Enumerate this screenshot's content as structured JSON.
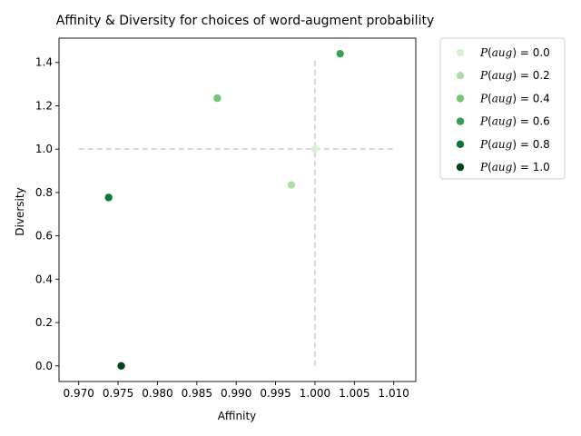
{
  "chart_data": {
    "type": "scatter",
    "title": "Affinity & Diversity for choices of word-augment probability",
    "xlabel": "Affinity",
    "ylabel": "Diversity",
    "xlim": [
      0.9675,
      1.0128
    ],
    "ylim": [
      -0.072,
      1.512
    ],
    "xticks": [
      "0.970",
      "0.975",
      "0.980",
      "0.985",
      "0.990",
      "0.995",
      "1.000",
      "1.005",
      "1.010"
    ],
    "yticks": [
      "0.0",
      "0.2",
      "0.4",
      "0.6",
      "0.8",
      "1.0",
      "1.2",
      "1.4"
    ],
    "xtick_values": [
      0.97,
      0.975,
      0.98,
      0.985,
      0.99,
      0.995,
      1.0,
      1.005,
      1.01
    ],
    "ytick_values": [
      0.0,
      0.2,
      0.4,
      0.6,
      0.8,
      1.0,
      1.2,
      1.4
    ],
    "reference_lines": [
      {
        "orientation": "horizontal",
        "y": 1.0,
        "x_from": 0.97,
        "x_to": 1.01,
        "style": "dashed",
        "color": "#cccccc"
      },
      {
        "orientation": "vertical",
        "x": 1.0,
        "y_from": 0.0,
        "y_to": 1.41,
        "style": "dashed",
        "color": "#cccccc"
      }
    ],
    "grid": false,
    "legend_position": "outside-right",
    "series": [
      {
        "name": "P(aug) = 0.0",
        "var": "P",
        "arg": "aug",
        "value": "0.0",
        "x": 1.0,
        "y": 1.0,
        "color": "#d9efd3"
      },
      {
        "name": "P(aug) = 0.2",
        "var": "P",
        "arg": "aug",
        "value": "0.2",
        "x": 0.997,
        "y": 0.835,
        "color": "#addea7"
      },
      {
        "name": "P(aug) = 0.4",
        "var": "P",
        "arg": "aug",
        "value": "0.4",
        "x": 0.9876,
        "y": 1.235,
        "color": "#73c476"
      },
      {
        "name": "P(aug) = 0.6",
        "var": "P",
        "arg": "aug",
        "value": "0.6",
        "x": 1.0032,
        "y": 1.44,
        "color": "#37a055"
      },
      {
        "name": "P(aug) = 0.8",
        "var": "P",
        "arg": "aug",
        "value": "0.8",
        "x": 0.9738,
        "y": 0.777,
        "color": "#0b7734"
      },
      {
        "name": "P(aug) = 1.0",
        "var": "P",
        "arg": "aug",
        "value": "1.0",
        "x": 0.9754,
        "y": 0.0,
        "color": "#00441b"
      }
    ]
  }
}
